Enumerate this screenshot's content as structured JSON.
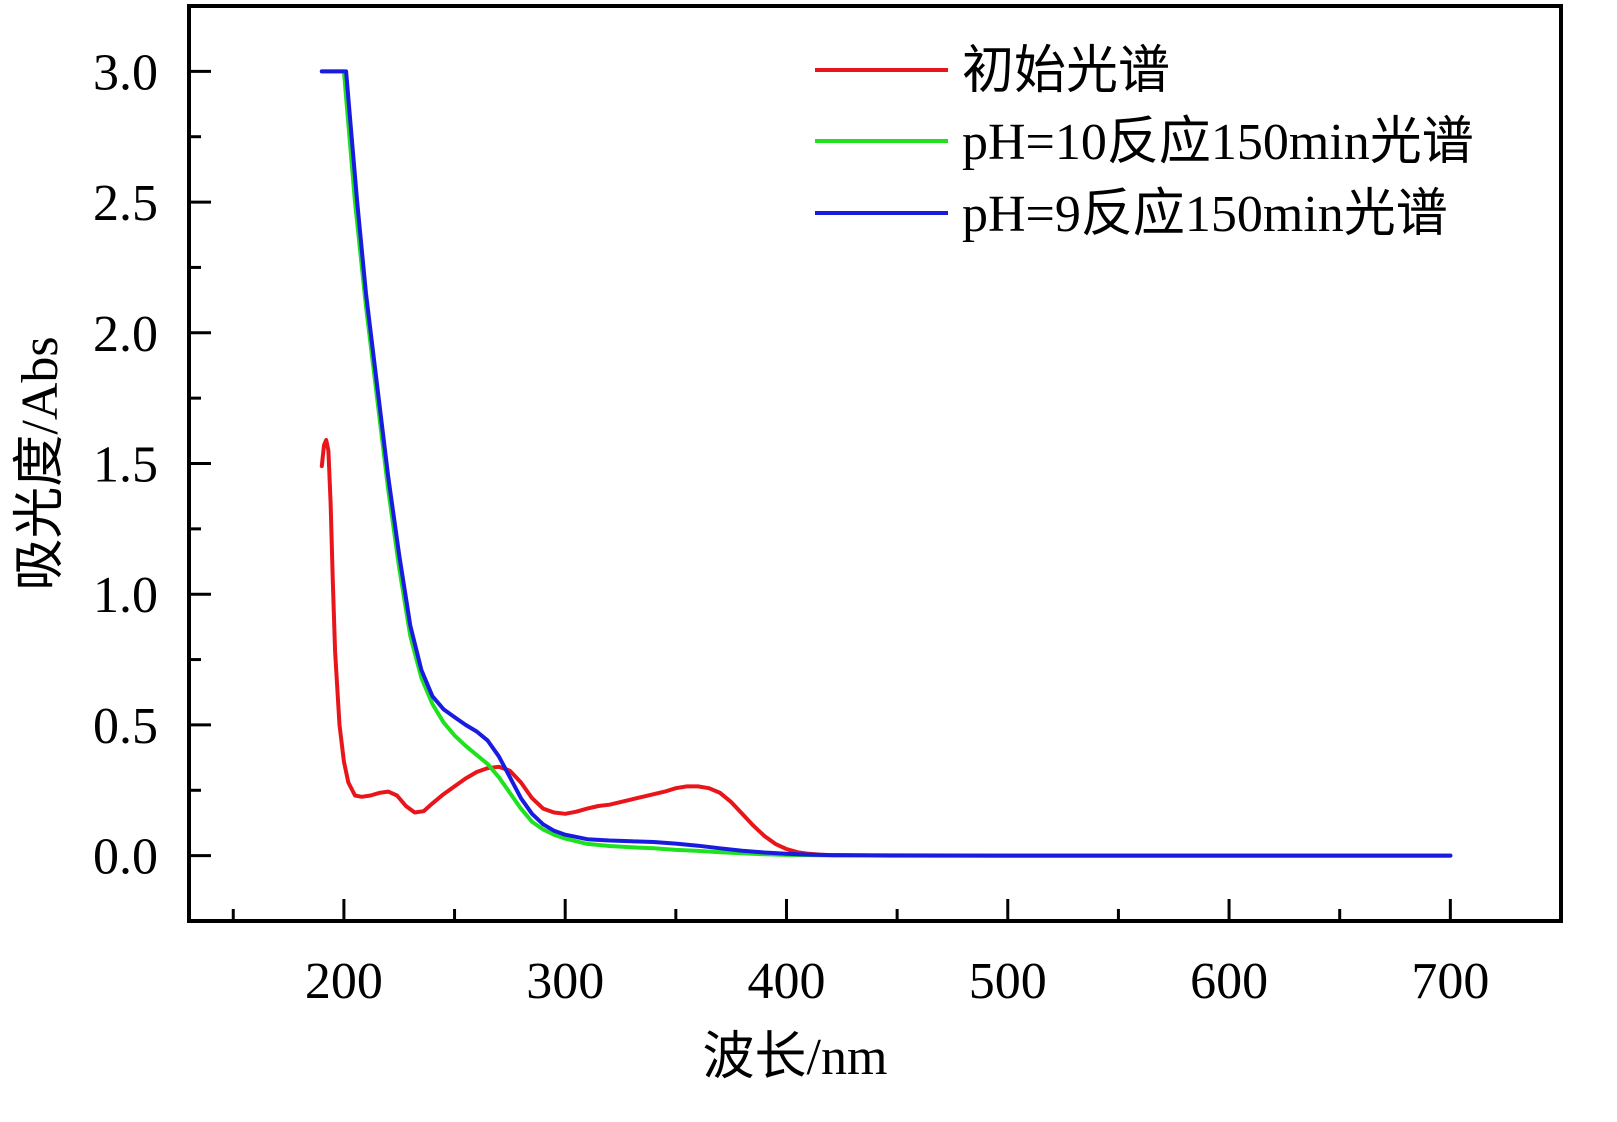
{
  "chart_data": {
    "type": "line",
    "title": "",
    "xlabel": "波长/nm",
    "ylabel": "吸光度/Abs",
    "xlim": [
      130,
      750
    ],
    "ylim": [
      -0.25,
      3.25
    ],
    "xticks": [
      200,
      300,
      400,
      500,
      600,
      700
    ],
    "xtick_labels": [
      "200",
      "300",
      "400",
      "500",
      "600",
      "700"
    ],
    "yticks": [
      0.0,
      0.5,
      1.0,
      1.5,
      2.0,
      2.5,
      3.0
    ],
    "ytick_labels": [
      "0.0",
      "0.5",
      "1.0",
      "1.5",
      "2.0",
      "2.5",
      "3.0"
    ],
    "grid": false,
    "legend_position": "top-right",
    "series": [
      {
        "name": "初始光谱",
        "color": "#e8161b",
        "x": [
          190,
          191,
          192,
          193,
          194,
          195,
          196,
          198,
          200,
          202,
          205,
          208,
          212,
          216,
          220,
          224,
          228,
          232,
          236,
          240,
          245,
          250,
          255,
          260,
          265,
          270,
          275,
          280,
          285,
          290,
          295,
          300,
          305,
          310,
          315,
          320,
          325,
          330,
          335,
          340,
          345,
          350,
          355,
          360,
          365,
          370,
          375,
          380,
          385,
          390,
          395,
          400,
          405,
          410,
          415,
          420,
          430,
          450,
          500,
          600,
          700
        ],
        "y": [
          1.49,
          1.57,
          1.59,
          1.55,
          1.35,
          1.05,
          0.78,
          0.5,
          0.36,
          0.28,
          0.23,
          0.225,
          0.23,
          0.24,
          0.245,
          0.23,
          0.19,
          0.165,
          0.17,
          0.2,
          0.235,
          0.265,
          0.295,
          0.32,
          0.335,
          0.34,
          0.325,
          0.28,
          0.22,
          0.18,
          0.165,
          0.16,
          0.168,
          0.18,
          0.19,
          0.195,
          0.205,
          0.215,
          0.225,
          0.235,
          0.245,
          0.258,
          0.265,
          0.265,
          0.258,
          0.24,
          0.205,
          0.16,
          0.115,
          0.075,
          0.045,
          0.025,
          0.013,
          0.007,
          0.004,
          0.002,
          0.001,
          0,
          0,
          0,
          0
        ]
      },
      {
        "name": "pH=10反应150min光谱",
        "color": "#1fe21f",
        "x": [
          190,
          200,
          202,
          205,
          210,
          215,
          220,
          225,
          230,
          235,
          240,
          245,
          250,
          255,
          260,
          265,
          270,
          275,
          280,
          285,
          290,
          295,
          300,
          310,
          320,
          330,
          340,
          350,
          360,
          370,
          380,
          390,
          400,
          410,
          420,
          450,
          500,
          600,
          700
        ],
        "y": [
          3.0,
          3.0,
          2.8,
          2.5,
          2.1,
          1.75,
          1.4,
          1.1,
          0.84,
          0.68,
          0.58,
          0.51,
          0.46,
          0.42,
          0.385,
          0.35,
          0.3,
          0.24,
          0.18,
          0.13,
          0.1,
          0.08,
          0.065,
          0.045,
          0.037,
          0.032,
          0.028,
          0.022,
          0.018,
          0.013,
          0.009,
          0.005,
          0.003,
          0.002,
          0.001,
          0,
          0,
          0,
          0
        ]
      },
      {
        "name": "pH=9反应150min光谱",
        "color": "#1a1be0",
        "x": [
          190,
          201,
          203,
          206,
          210,
          215,
          220,
          225,
          230,
          235,
          240,
          245,
          250,
          255,
          260,
          265,
          270,
          275,
          280,
          285,
          290,
          295,
          300,
          310,
          320,
          330,
          340,
          350,
          360,
          370,
          380,
          390,
          400,
          410,
          420,
          450,
          500,
          600,
          700
        ],
        "y": [
          3.0,
          3.0,
          2.8,
          2.5,
          2.15,
          1.8,
          1.45,
          1.15,
          0.88,
          0.71,
          0.61,
          0.56,
          0.53,
          0.5,
          0.475,
          0.44,
          0.38,
          0.3,
          0.22,
          0.16,
          0.12,
          0.095,
          0.08,
          0.063,
          0.058,
          0.055,
          0.052,
          0.046,
          0.038,
          0.028,
          0.019,
          0.012,
          0.007,
          0.004,
          0.002,
          0.001,
          0,
          0,
          0
        ]
      }
    ]
  }
}
